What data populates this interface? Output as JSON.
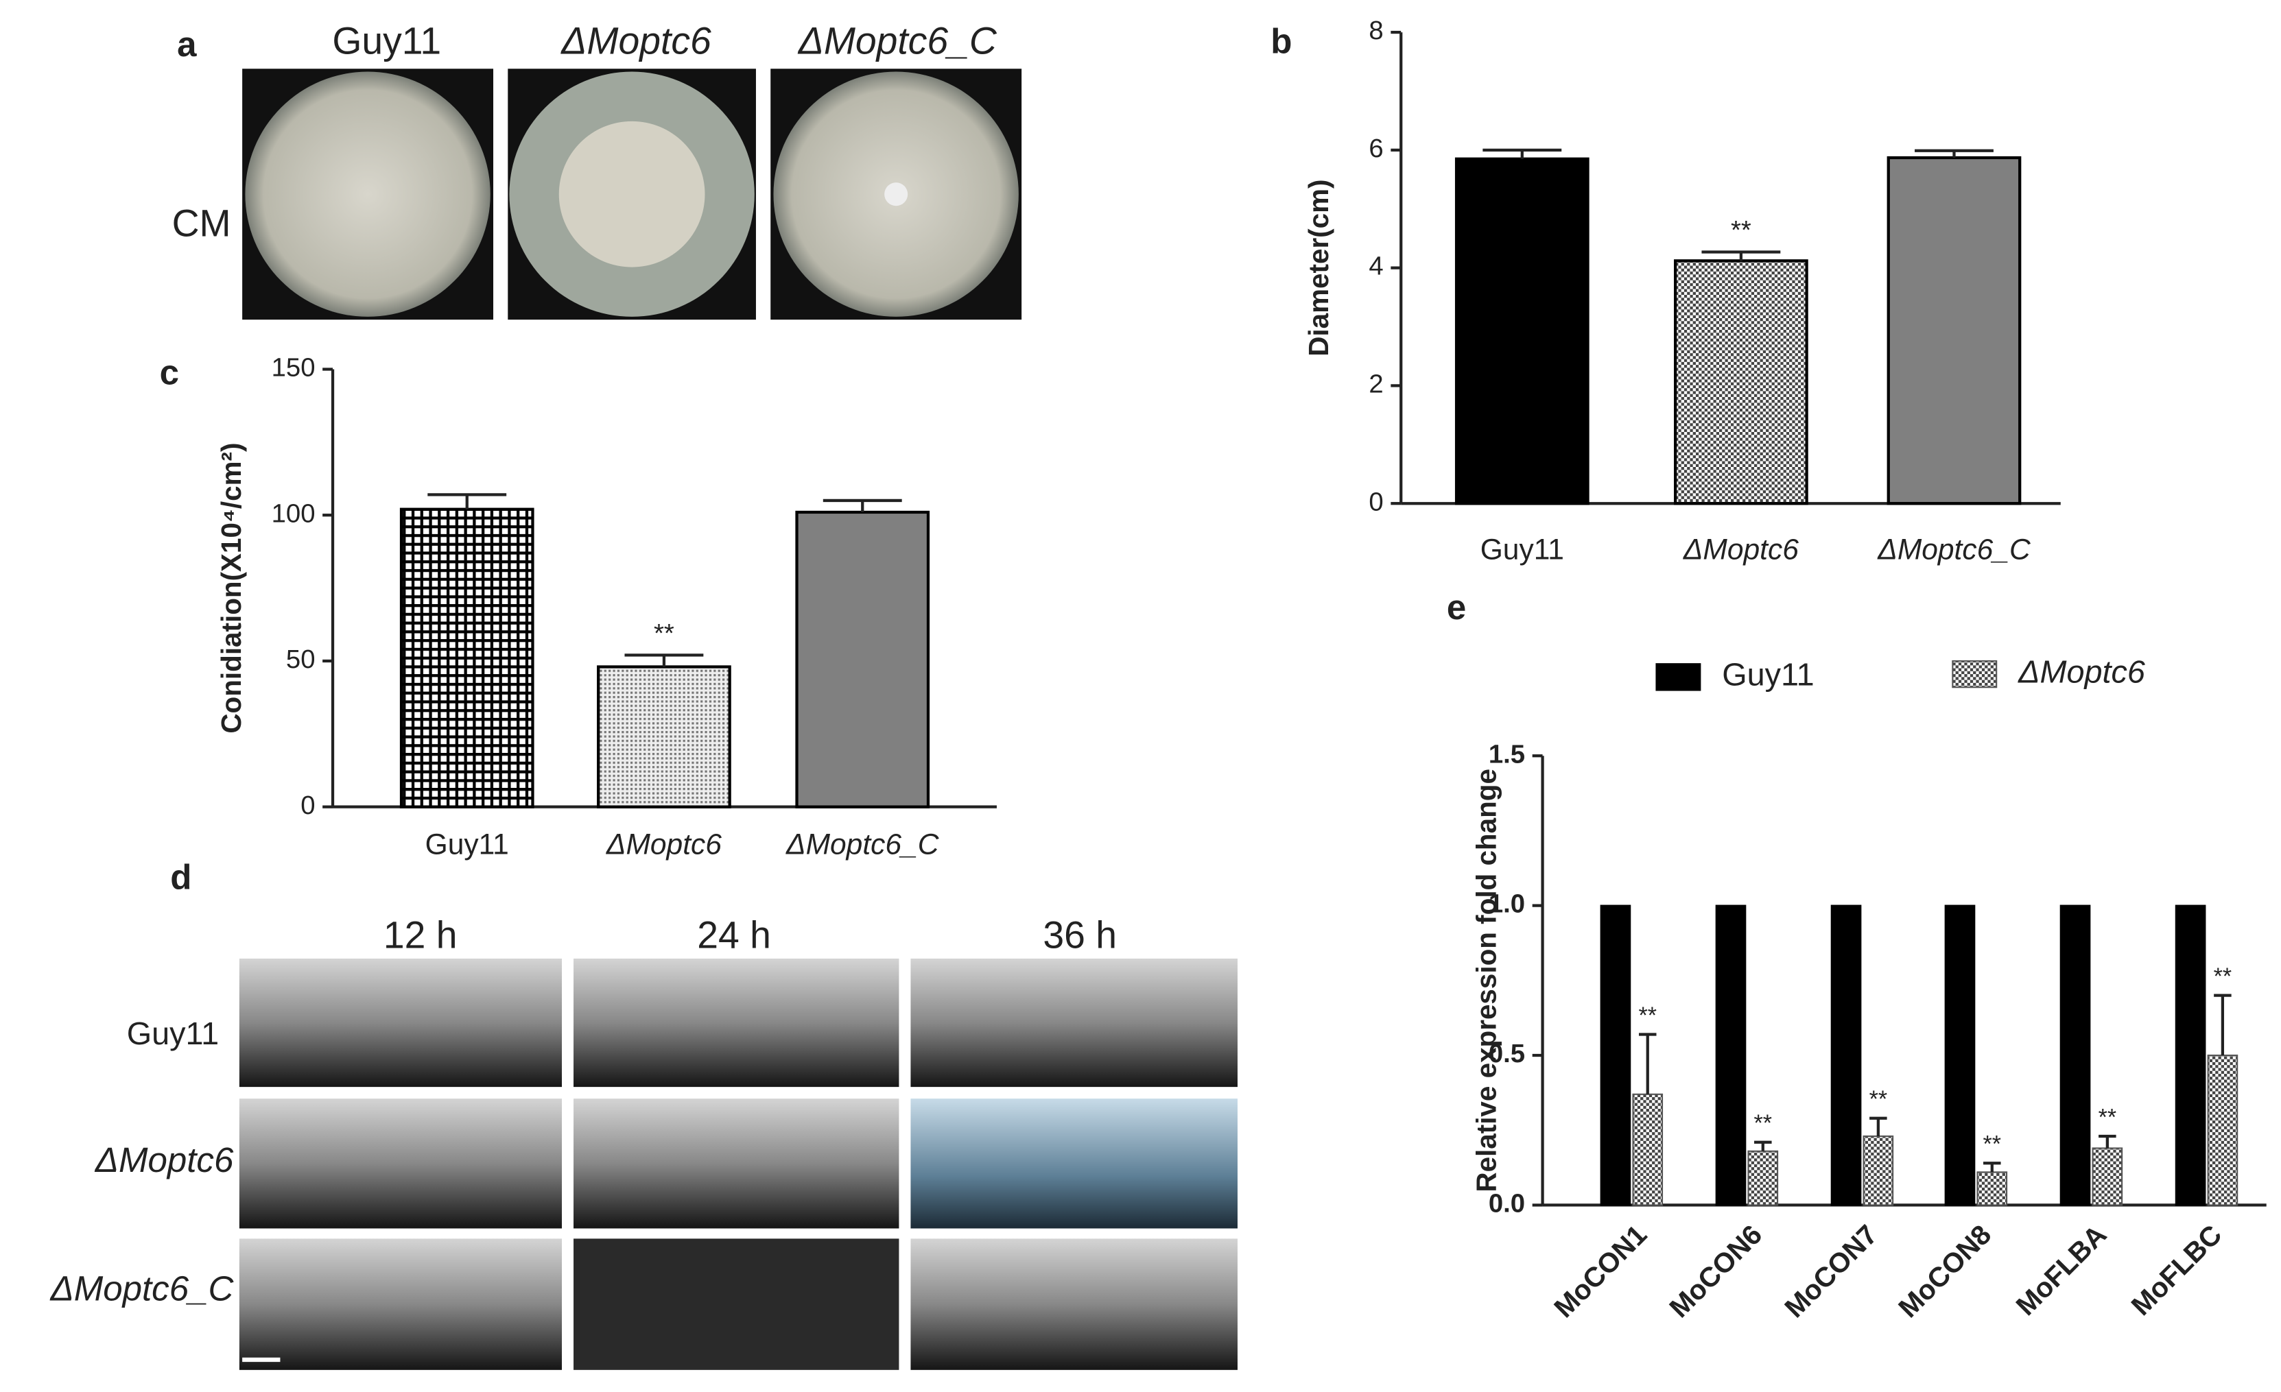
{
  "panels": {
    "a": {
      "letter": "a",
      "columns": [
        "Guy11",
        "ΔMoptc6",
        "ΔMoptc6_C"
      ],
      "row": "CM"
    },
    "d": {
      "letter": "d",
      "columns": [
        "12 h",
        "24 h",
        "36 h"
      ],
      "rows": [
        "Guy11",
        "ΔMoptc6",
        "ΔMoptc6_C"
      ]
    }
  },
  "chart_data": [
    {
      "type": "bar",
      "panel": "b",
      "ylabel": "Diameter(cm)",
      "categories": [
        "Guy11",
        "ΔMoptc6",
        "ΔMoptc6_C"
      ],
      "values": [
        5.85,
        4.12,
        5.87
      ],
      "errors": [
        0.15,
        0.15,
        0.12
      ],
      "colors": [
        "#000000",
        "#ffffff",
        "#808080"
      ],
      "hatch": [
        "none",
        "checker",
        "none"
      ],
      "annotations": [
        {
          "category_index": 1,
          "text": "**"
        }
      ],
      "ylim": [
        0,
        8
      ],
      "yticks": [
        0,
        2,
        4,
        6,
        8
      ]
    },
    {
      "type": "bar",
      "panel": "c",
      "ylabel": "Conidiation(X10⁴/cm²)",
      "categories": [
        "Guy11",
        "ΔMoptc6",
        "ΔMoptc6_C"
      ],
      "values": [
        102,
        48,
        101
      ],
      "errors": [
        5,
        4,
        4
      ],
      "colors": [
        "#ffffff",
        "#ffffff",
        "#808080"
      ],
      "hatch": [
        "grid",
        "dots",
        "none"
      ],
      "annotations": [
        {
          "category_index": 1,
          "text": "**"
        }
      ],
      "ylim": [
        0,
        150
      ],
      "yticks": [
        0,
        50,
        100,
        150
      ]
    },
    {
      "type": "grouped_bar",
      "panel": "e",
      "ylabel": "Relative expression fold change",
      "categories": [
        "MoCON1",
        "MoCON6",
        "MoCON7",
        "MoCON8",
        "MoFLBA",
        "MoFLBC"
      ],
      "series": [
        {
          "name": "Guy11",
          "color": "#000000",
          "hatch": "none",
          "values": [
            1,
            1,
            1,
            1,
            1,
            1
          ]
        },
        {
          "name": "ΔMoptc6",
          "color": "#555555",
          "hatch": "checker",
          "values": [
            0.37,
            0.18,
            0.23,
            0.11,
            0.19,
            0.5
          ],
          "errors": [
            0.2,
            0.03,
            0.06,
            0.03,
            0.04,
            0.2
          ]
        }
      ],
      "annotations": [
        {
          "series_index": 1,
          "category_index": 0,
          "text": "**"
        },
        {
          "series_index": 1,
          "category_index": 1,
          "text": "**"
        },
        {
          "series_index": 1,
          "category_index": 2,
          "text": "**"
        },
        {
          "series_index": 1,
          "category_index": 3,
          "text": "**"
        },
        {
          "series_index": 1,
          "category_index": 4,
          "text": "**"
        },
        {
          "series_index": 1,
          "category_index": 5,
          "text": "**"
        }
      ],
      "ylim": [
        0,
        1.5
      ],
      "yticks": [
        {
          "value": 0,
          "label": "0.0"
        },
        0.5,
        {
          "value": 1,
          "label": "1.0"
        },
        1.5
      ]
    }
  ]
}
